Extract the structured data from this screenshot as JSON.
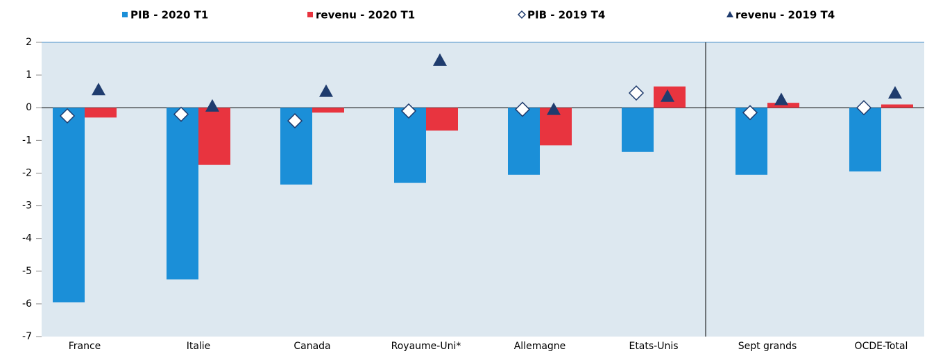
{
  "chart_data": {
    "type": "bar",
    "categories": [
      "France",
      "Italie",
      "Canada",
      "Royaume-Uni*",
      "Allemagne",
      "Etats-Unis",
      "Sept grands",
      "OCDE-Total"
    ],
    "series": [
      {
        "name": "PIB - 2020 T1",
        "color": "#1b8fd8",
        "marker": "bar",
        "values": [
          -5.95,
          -5.25,
          -2.35,
          -2.3,
          -2.05,
          -1.35,
          -2.05,
          -1.95
        ]
      },
      {
        "name": "revenu - 2020 T1",
        "color": "#e8343f",
        "marker": "bar",
        "values": [
          -0.3,
          -1.75,
          -0.15,
          -0.7,
          -1.15,
          0.65,
          0.15,
          0.1
        ]
      },
      {
        "name": "PIB - 2019 T4",
        "color": "#1f3c6e",
        "marker": "diamond",
        "values": [
          -0.25,
          -0.2,
          -0.4,
          -0.1,
          -0.05,
          0.45,
          -0.15,
          0
        ]
      },
      {
        "name": "revenu - 2019 T4",
        "color": "#1f3c6e",
        "marker": "triangle",
        "values": [
          0.55,
          0.05,
          0.5,
          1.45,
          -0.05,
          0.35,
          0.25,
          0.45
        ]
      }
    ],
    "ylim": [
      -7,
      2
    ],
    "yticks": [
      2,
      1,
      0,
      -1,
      -2,
      -3,
      -4,
      -5,
      -6,
      -7
    ],
    "grid": false
  }
}
